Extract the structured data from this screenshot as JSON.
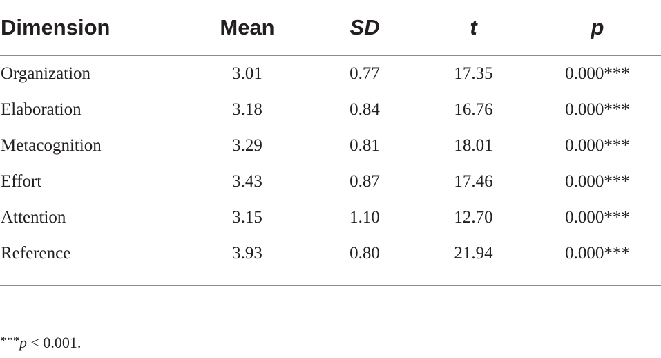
{
  "table": {
    "headers": [
      "Dimension",
      "Mean",
      "SD",
      "t",
      "p"
    ],
    "rows": [
      [
        "Organization",
        "3.01",
        "0.77",
        "17.35",
        "0.000***"
      ],
      [
        "Elaboration",
        "3.18",
        "0.84",
        "16.76",
        "0.000***"
      ],
      [
        "Metacognition",
        "3.29",
        "0.81",
        "18.01",
        "0.000***"
      ],
      [
        "Effort",
        "3.43",
        "0.87",
        "17.46",
        "0.000***"
      ],
      [
        "Attention",
        "3.15",
        "1.10",
        "12.70",
        "0.000***"
      ],
      [
        "Reference",
        "3.93",
        "0.80",
        "21.94",
        "0.000***"
      ]
    ]
  },
  "footnote": {
    "stars": "***",
    "variable": "p",
    "text": " < 0.001."
  }
}
